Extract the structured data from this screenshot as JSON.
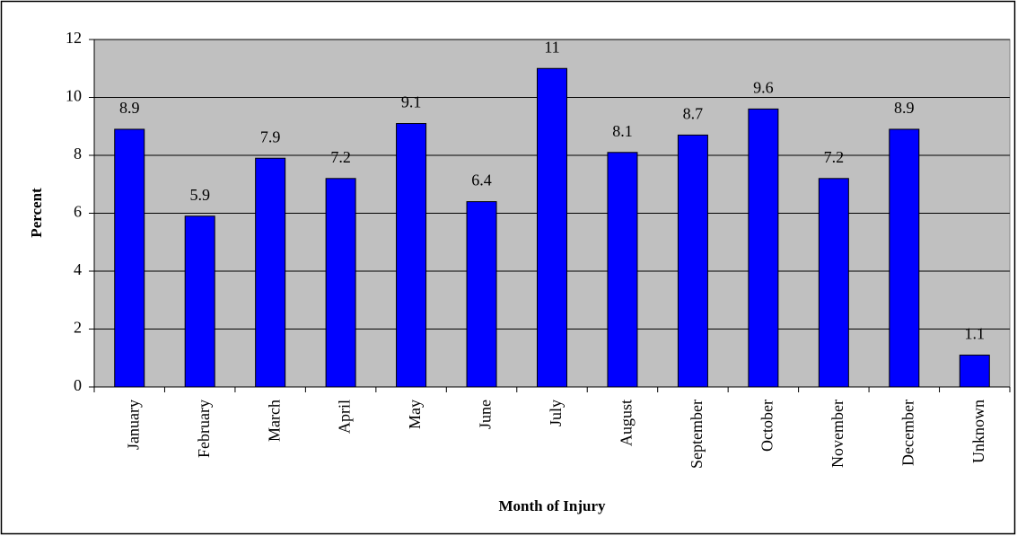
{
  "chart_data": {
    "type": "bar",
    "x_label": "Month of Injury",
    "y_label": "Percent",
    "categories": [
      "January",
      "February",
      "March",
      "April",
      "May",
      "June",
      "July",
      "August",
      "September",
      "October",
      "November",
      "December",
      "Unknown"
    ],
    "values": [
      8.9,
      5.9,
      7.9,
      7.2,
      9.1,
      6.4,
      11,
      8.1,
      8.7,
      9.6,
      7.2,
      8.9,
      1.1
    ],
    "color": "#0000ff",
    "background": "#c0c0c0",
    "ylim": [
      0,
      12
    ],
    "yticks": [
      0,
      2,
      4,
      6,
      8,
      10,
      12
    ],
    "grid": true
  }
}
